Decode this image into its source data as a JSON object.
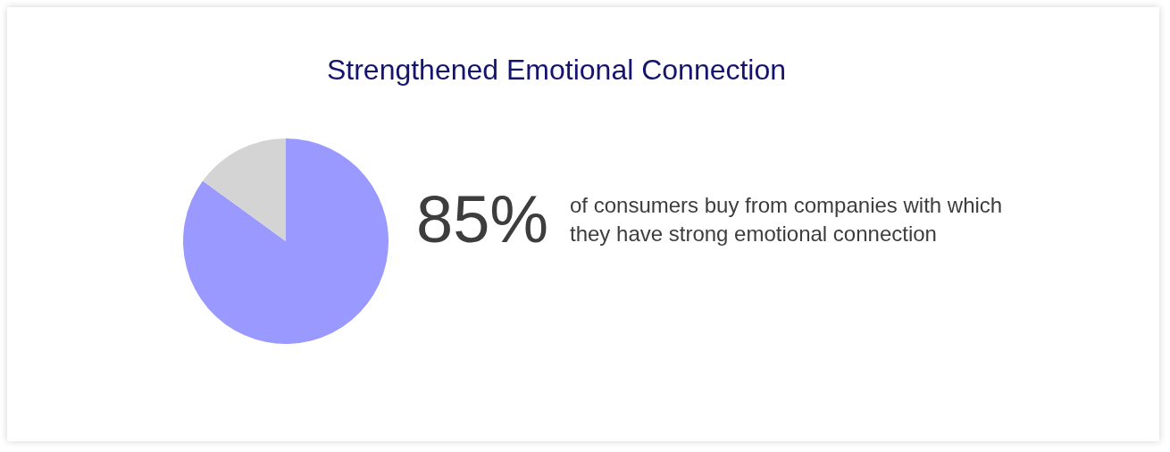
{
  "chart_data": {
    "type": "pie",
    "title": "Strengthened Emotional Connection",
    "categories": [
      null,
      null
    ],
    "values": [
      85,
      15
    ],
    "colors": [
      "#9999ff",
      "#d4d4d4"
    ],
    "annotations": [
      "85%",
      "of consumers buy from companies with which they have strong emotional connection"
    ],
    "legend": false
  }
}
